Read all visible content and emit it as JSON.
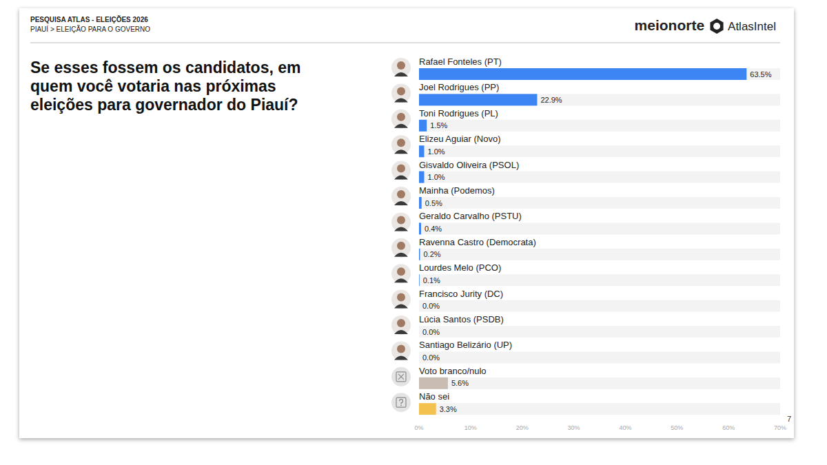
{
  "header": {
    "source": "PESQUISA ATLAS - ELEIÇÕES 2026",
    "breadcrumb": "PIAUÍ > ELEIÇÃO PARA O GOVERNO",
    "logos": [
      "meionorte",
      "AtlasIntel"
    ],
    "page_number": "7"
  },
  "chart_data": {
    "type": "bar",
    "orientation": "horizontal",
    "title": "Se esses fossem os candidatos, em quem você votaria nas próximas eleições para governador do Piauí?",
    "categories": [
      "Rafael Fonteles (PT)",
      "Joel Rodrigues (PP)",
      "Toni Rodrigues (PL)",
      "Elizeu Aguiar (Novo)",
      "Gisvaldo Oliveira (PSOL)",
      "Mainha (Podemos)",
      "Geraldo Carvalho (PSTU)",
      "Ravenna Castro (Democrata)",
      "Lourdes Melo (PCO)",
      "Francisco Jurity (DC)",
      "Lúcia Santos (PSDB)",
      "Santiago Belizário (UP)",
      "Voto branco/nulo",
      "Não sei"
    ],
    "values": [
      63.5,
      22.9,
      1.5,
      1.0,
      1.0,
      0.5,
      0.4,
      0.2,
      0.1,
      0.0,
      0.0,
      0.0,
      5.6,
      3.3
    ],
    "value_labels": [
      "63.5%",
      "22.9%",
      "1.5%",
      "1.0%",
      "1.0%",
      "0.5%",
      "0.4%",
      "0.2%",
      "0.1%",
      "0.0%",
      "0.0%",
      "0.0%",
      "5.6%",
      "3.3%"
    ],
    "colors": [
      "#3d85f2",
      "#3d85f2",
      "#3d85f2",
      "#3d85f2",
      "#3d85f2",
      "#3d85f2",
      "#3d85f2",
      "#3d85f2",
      "#3d85f2",
      "#3d85f2",
      "#3d85f2",
      "#3d85f2",
      "#c9bdb3",
      "#f2c14e"
    ],
    "xlim": [
      0,
      70
    ],
    "xticks": [
      {
        "value": 0,
        "label": "0%"
      },
      {
        "value": 10,
        "label": "10%"
      },
      {
        "value": 20,
        "label": "20%"
      },
      {
        "value": 30,
        "label": "30%"
      },
      {
        "value": 40,
        "label": "40%"
      },
      {
        "value": 50,
        "label": "50%"
      },
      {
        "value": 60,
        "label": "60%"
      },
      {
        "value": 70,
        "label": "70%"
      }
    ],
    "grid": false,
    "data_labels": true
  }
}
